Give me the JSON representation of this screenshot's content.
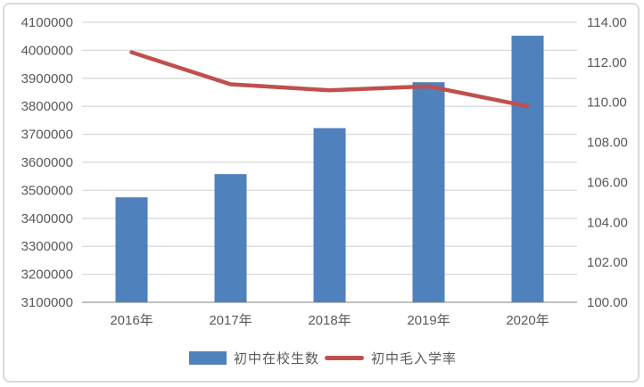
{
  "chart_data": {
    "type": "bar",
    "subtype": "combo-bar-line",
    "title": "",
    "categories": [
      "2016年",
      "2017年",
      "2018年",
      "2019年",
      "2020年"
    ],
    "series": [
      {
        "name": "初中在校生数",
        "type": "bar",
        "axis": "left",
        "color": "#4f81bd",
        "values": [
          3475000,
          3558000,
          3722000,
          3886000,
          4052000
        ]
      },
      {
        "name": "初中毛入学率",
        "type": "line",
        "axis": "right",
        "color": "#c0504d",
        "values": [
          112.5,
          110.9,
          110.6,
          110.8,
          109.8
        ]
      }
    ],
    "left_axis": {
      "min": 3100000,
      "max": 4100000,
      "step": 100000,
      "tick_labels": [
        "4100000",
        "4000000",
        "3900000",
        "3800000",
        "3700000",
        "3600000",
        "3500000",
        "3400000",
        "3300000",
        "3200000",
        "3100000"
      ]
    },
    "right_axis": {
      "min": 100,
      "max": 114,
      "step": 2,
      "tick_labels": [
        "114.00",
        "112.00",
        "110.00",
        "108.00",
        "106.00",
        "104.00",
        "102.00",
        "100.00"
      ]
    },
    "grid": true,
    "legend_position": "bottom"
  },
  "style": {
    "text_color": "#595959",
    "gridline_color": "#d9d9d9",
    "baseline_color": "#bfbfbf",
    "bar_color": "#4f81bd",
    "line_color": "#c0504d",
    "frame_border_color": "#d9d9d9"
  }
}
